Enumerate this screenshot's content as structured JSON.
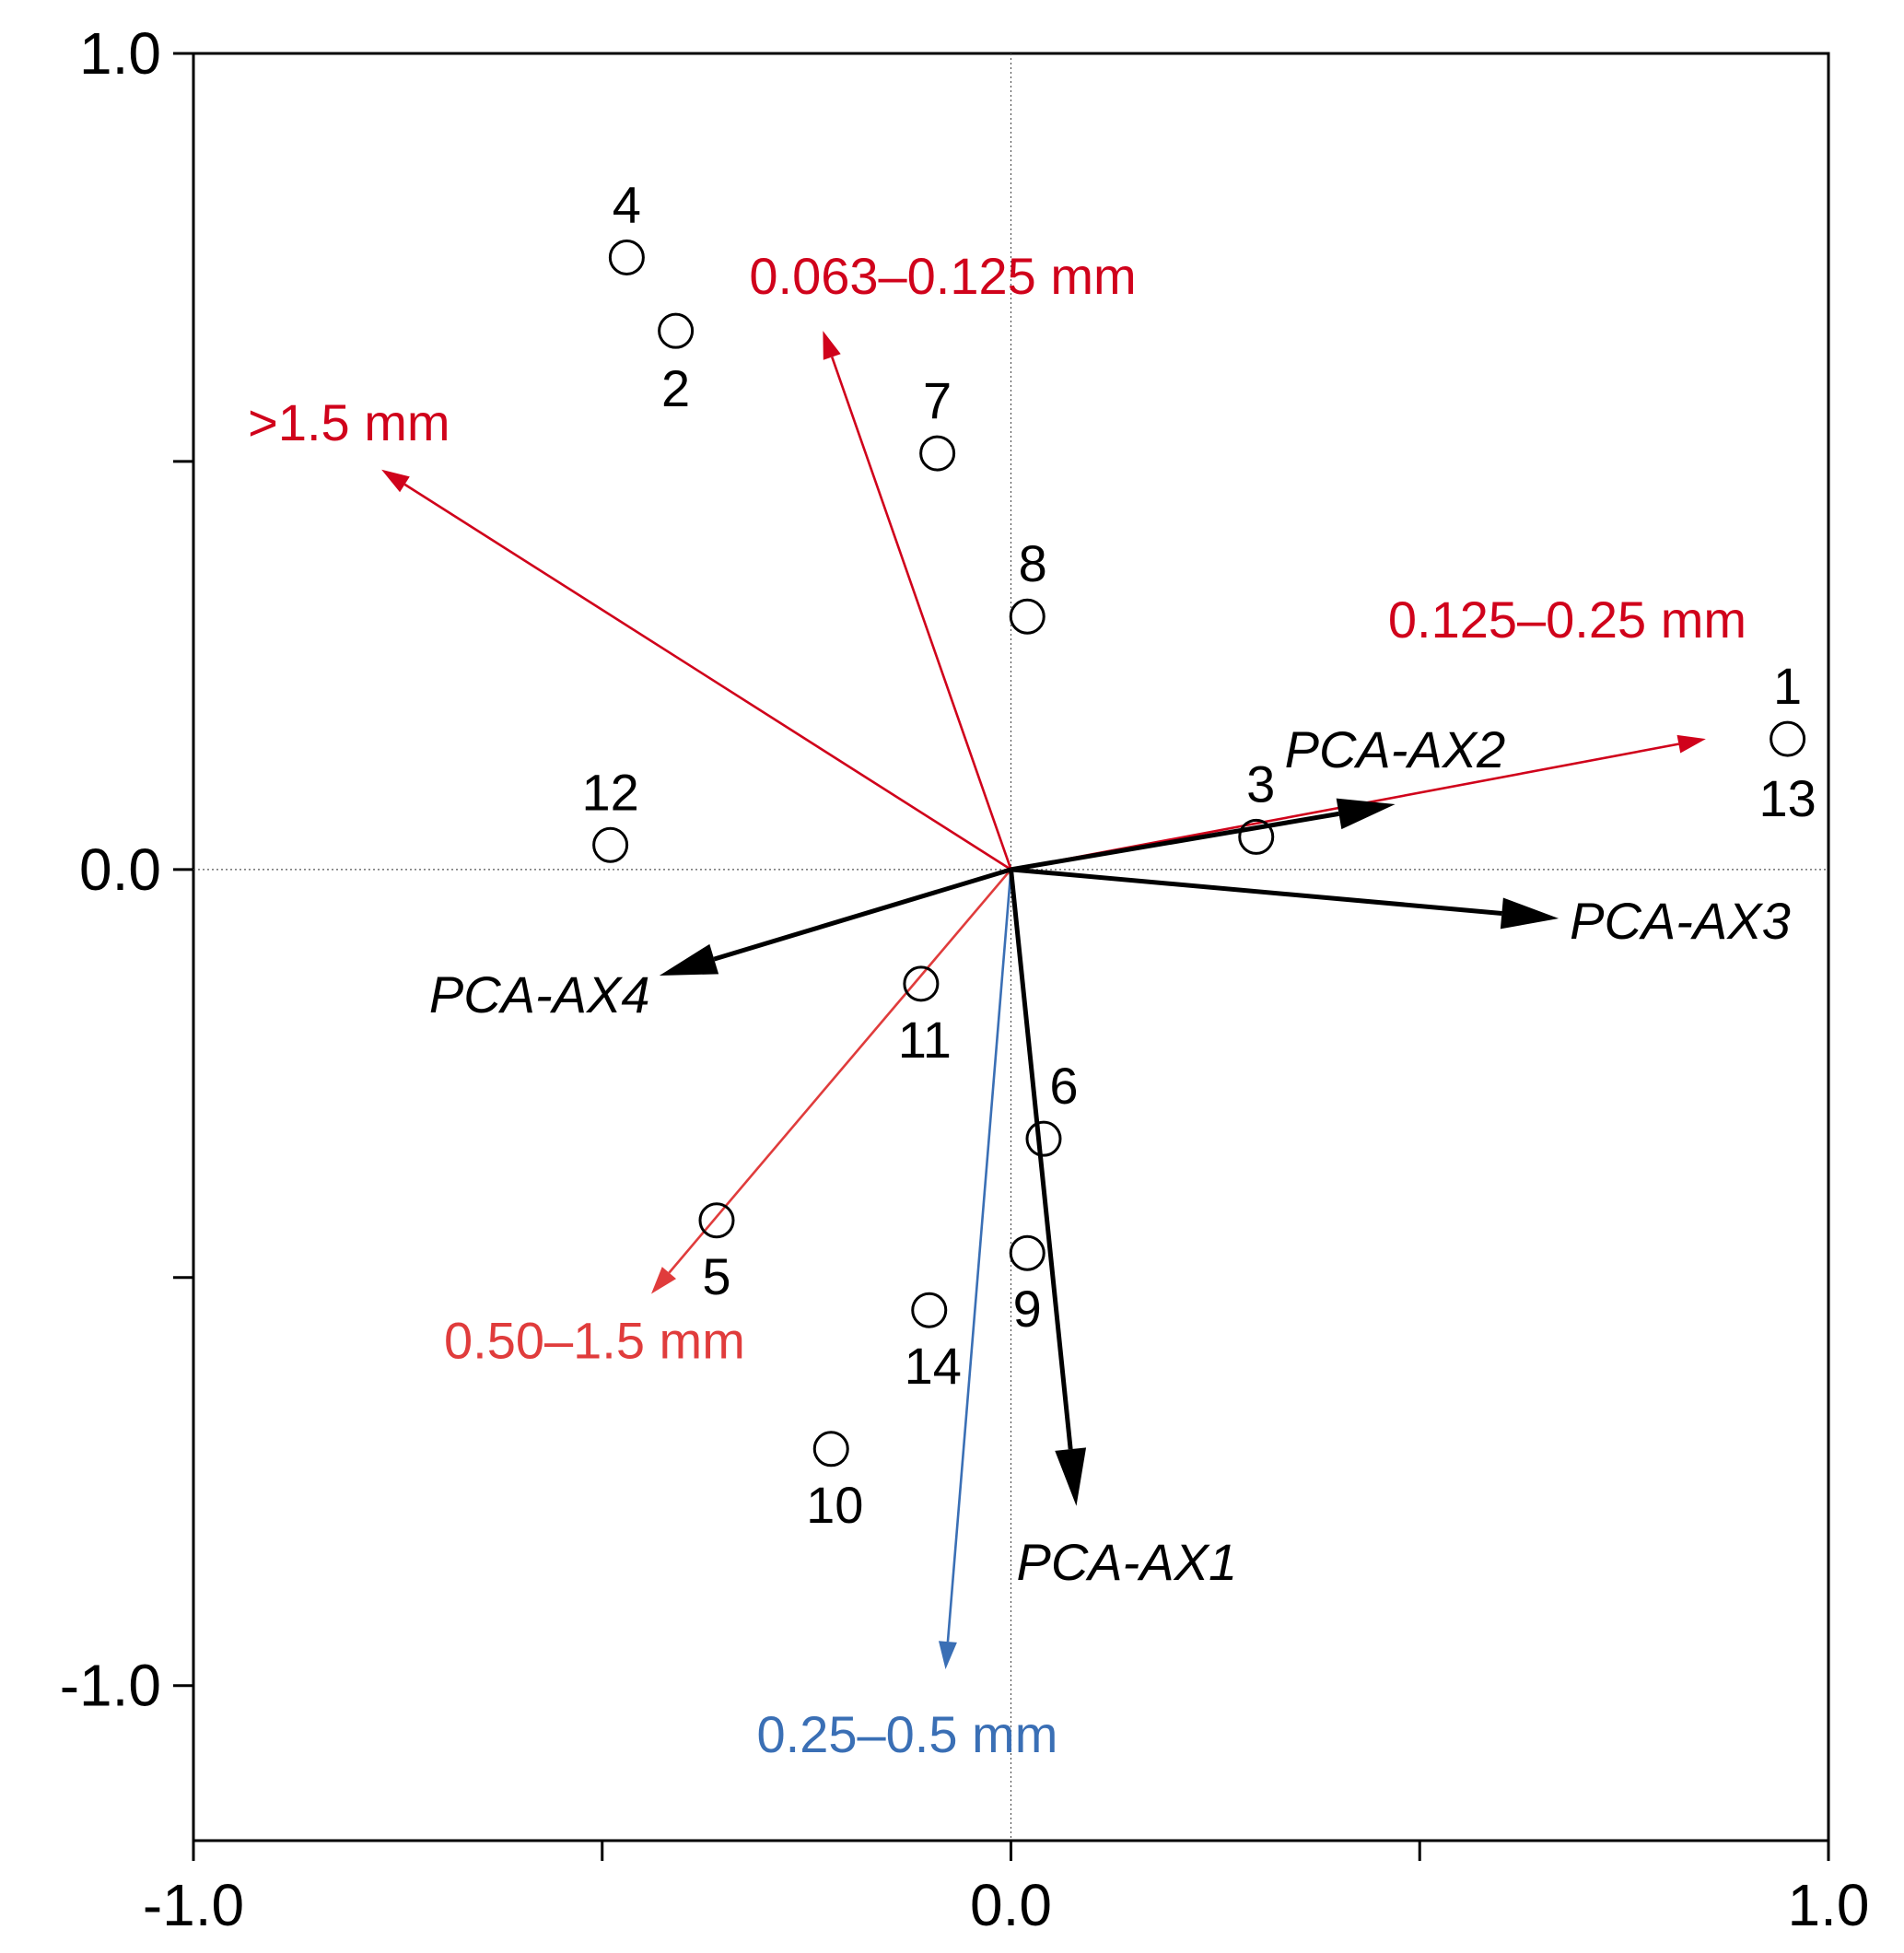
{
  "chart_data": {
    "type": "scatter",
    "title": "",
    "xlabel": "",
    "ylabel": "",
    "xlim": [
      -1.0,
      1.0
    ],
    "ylim": [
      -1.19,
      1.0
    ],
    "grid": false,
    "zero_lines": true,
    "x_ticks": [
      -1.0,
      -0.5,
      0.0,
      0.5,
      1.0
    ],
    "x_tick_labels": [
      "-1.0",
      "",
      "0.0",
      "",
      "1.0"
    ],
    "y_ticks": [
      1.0,
      0.5,
      0.0,
      -0.5,
      -1.0
    ],
    "y_tick_labels": [
      "1.0",
      "",
      "0.0",
      "",
      "-1.0"
    ],
    "colors": {
      "explanatory": "#000000",
      "positive_grain": "#d0021b",
      "coarse_sand": "#e03c3c",
      "medium_sand": "#3a6fb5"
    },
    "sites": [
      {
        "label": "1",
        "x": 0.95,
        "y": 0.16
      },
      {
        "label": "13",
        "x": 0.95,
        "y": 0.16
      },
      {
        "label": "2",
        "x": -0.41,
        "y": 0.66
      },
      {
        "label": "3",
        "x": 0.3,
        "y": 0.04
      },
      {
        "label": "4",
        "x": -0.47,
        "y": 0.75
      },
      {
        "label": "5",
        "x": -0.36,
        "y": -0.43
      },
      {
        "label": "6",
        "x": 0.04,
        "y": -0.33
      },
      {
        "label": "7",
        "x": -0.09,
        "y": 0.51
      },
      {
        "label": "8",
        "x": 0.02,
        "y": 0.31
      },
      {
        "label": "9",
        "x": 0.02,
        "y": -0.47
      },
      {
        "label": "10",
        "x": -0.22,
        "y": -0.71
      },
      {
        "label": "11",
        "x": -0.11,
        "y": -0.14
      },
      {
        "label": "12",
        "x": -0.49,
        "y": 0.03
      },
      {
        "label": "14",
        "x": -0.1,
        "y": -0.54
      }
    ],
    "vectors": [
      {
        "label": "0.063–0.125 mm",
        "x": -0.23,
        "y": 0.66,
        "color": "positive_grain",
        "style": "thin"
      },
      {
        "label": ">1.5 mm",
        "x": -0.77,
        "y": 0.49,
        "color": "positive_grain",
        "style": "thin"
      },
      {
        "label": "0.125–0.25 mm",
        "x": 0.85,
        "y": 0.16,
        "color": "positive_grain",
        "style": "thin"
      },
      {
        "label": "0.50–1.5 mm",
        "x": -0.44,
        "y": -0.52,
        "color": "coarse_sand",
        "style": "thin"
      },
      {
        "label": "0.25–0.5 mm",
        "x": -0.08,
        "y": -0.98,
        "color": "medium_sand",
        "style": "thin"
      },
      {
        "label": "PCA-AX1",
        "x": 0.08,
        "y": -0.78,
        "color": "explanatory",
        "style": "bold"
      },
      {
        "label": "PCA-AX2",
        "x": 0.47,
        "y": 0.08,
        "color": "explanatory",
        "style": "bold"
      },
      {
        "label": "PCA-AX3",
        "x": 0.67,
        "y": -0.06,
        "color": "explanatory",
        "style": "bold"
      },
      {
        "label": "PCA-AX4",
        "x": -0.43,
        "y": -0.13,
        "color": "explanatory",
        "style": "bold"
      }
    ]
  }
}
